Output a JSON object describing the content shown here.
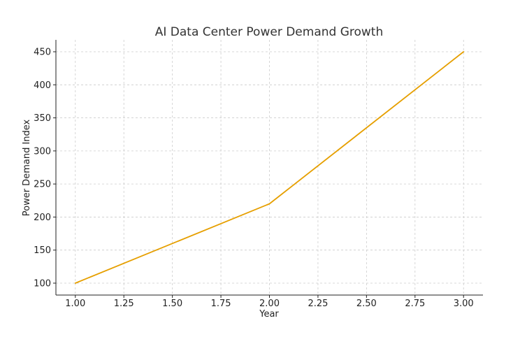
{
  "chart_data": {
    "type": "line",
    "title": "AI Data Center Power Demand Growth",
    "xlabel": "Year",
    "ylabel": "Power Demand Index",
    "xlim": [
      0.9,
      3.1
    ],
    "ylim": [
      82,
      468
    ],
    "x_ticks": [
      1.0,
      1.25,
      1.5,
      1.75,
      2.0,
      2.25,
      2.5,
      2.75,
      3.0
    ],
    "x_tick_labels": [
      "1.00",
      "1.25",
      "1.50",
      "1.75",
      "2.00",
      "2.25",
      "2.50",
      "2.75",
      "3.00"
    ],
    "y_ticks": [
      100,
      150,
      200,
      250,
      300,
      350,
      400,
      450
    ],
    "y_tick_labels": [
      "100",
      "150",
      "200",
      "250",
      "300",
      "350",
      "400",
      "450"
    ],
    "grid": true,
    "series": [
      {
        "x": [
          1,
          2,
          3
        ],
        "values": [
          100,
          220,
          450
        ],
        "color": "#e69f00"
      }
    ]
  }
}
